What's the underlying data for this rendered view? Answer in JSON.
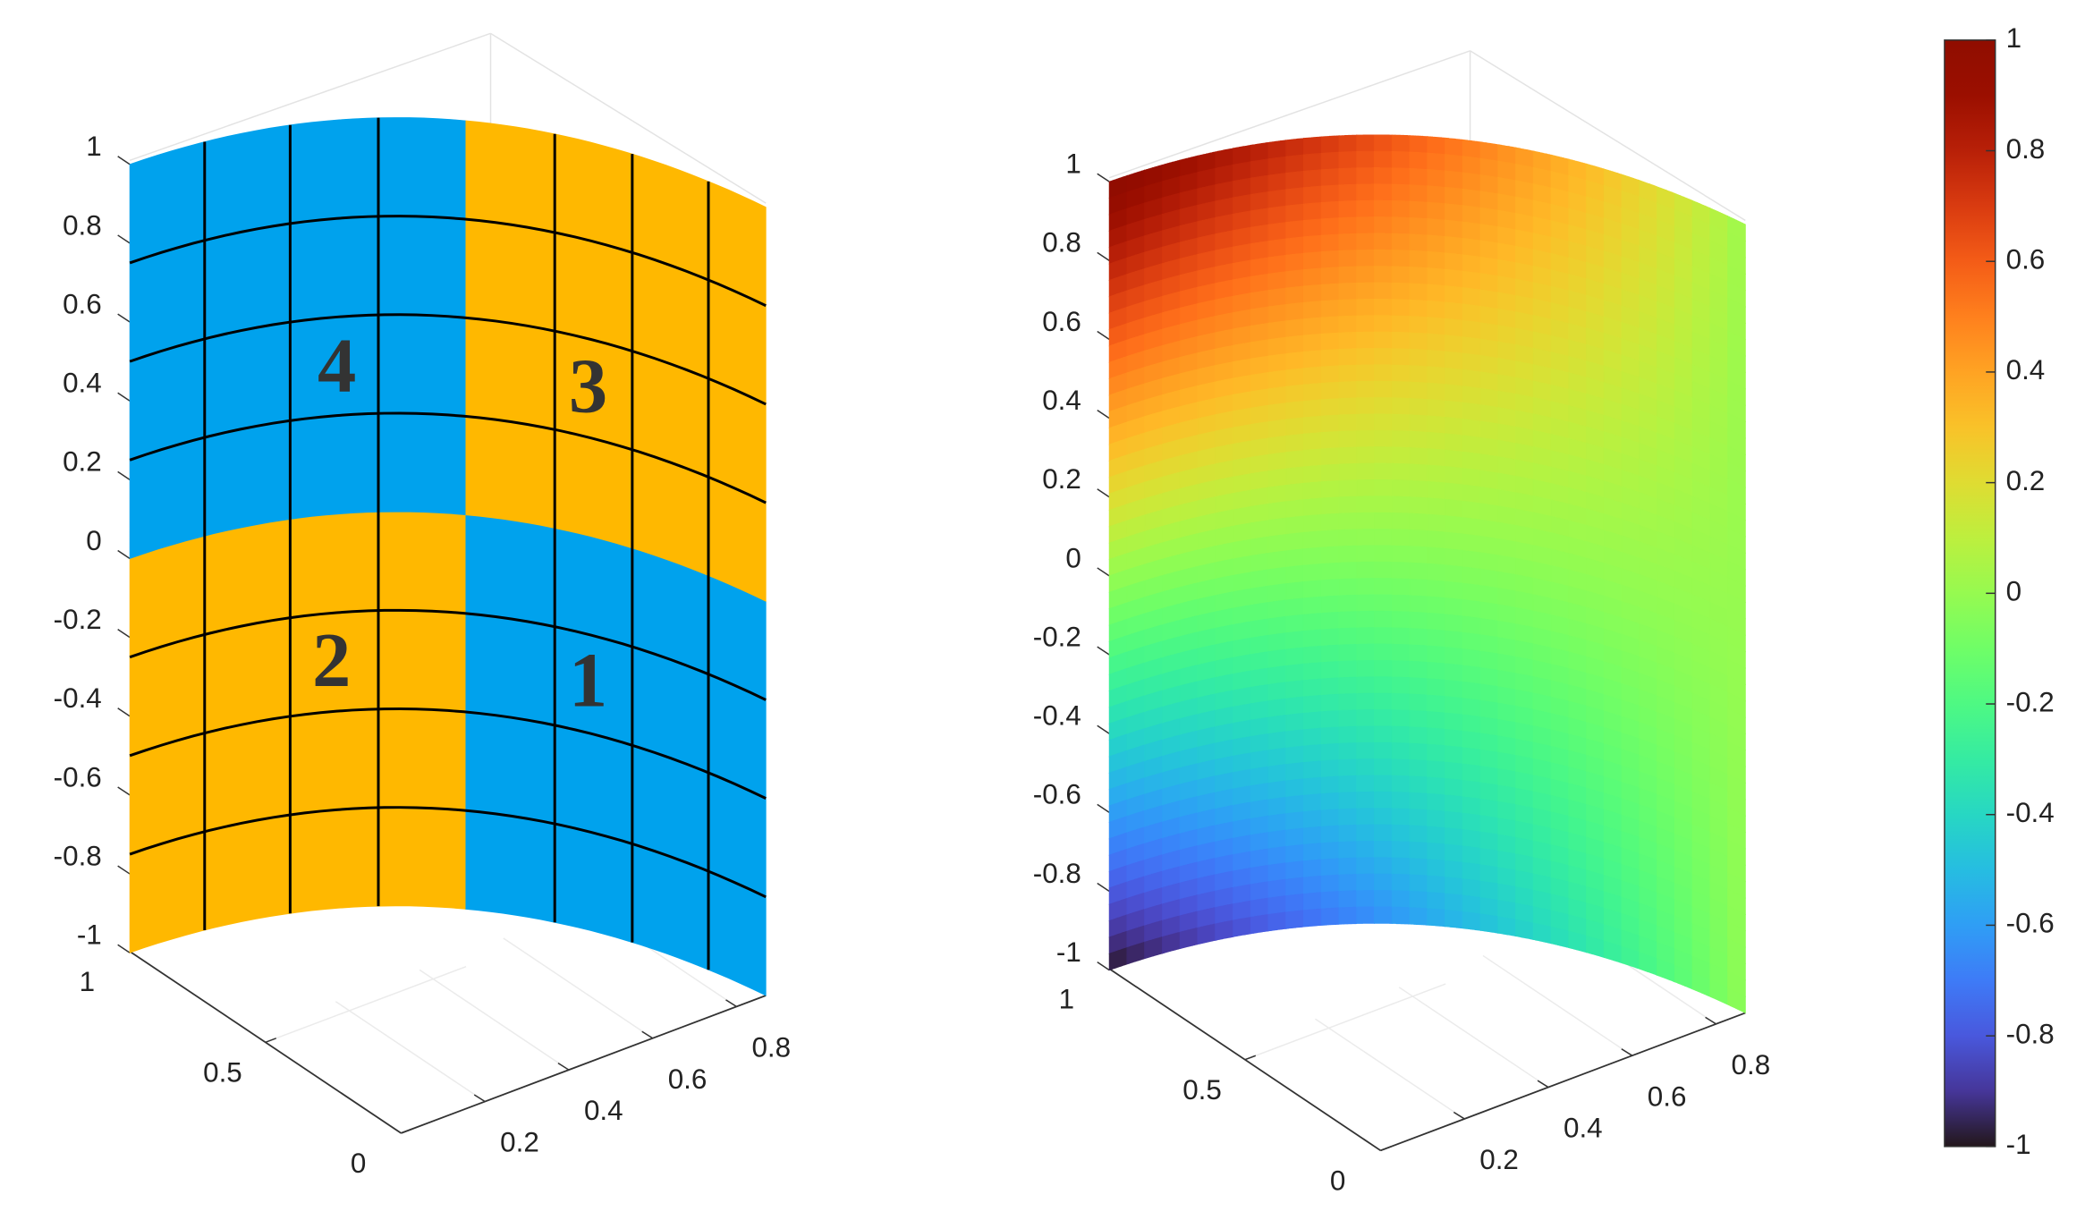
{
  "chart_data": [
    {
      "type": "patch3d",
      "xlim": [
        0,
        0.87
      ],
      "ylim": [
        0,
        1
      ],
      "zlim": [
        -1,
        1
      ],
      "xticks": [
        0.2,
        0.4,
        0.6,
        0.8
      ],
      "yticks": [
        0,
        0.5,
        1
      ],
      "zticks": [
        -1,
        -0.8,
        -0.6,
        -0.4,
        -0.2,
        0,
        0.2,
        0.4,
        0.6,
        0.8,
        1
      ],
      "patches": [
        {
          "label": "1",
          "color": "#00a2ed"
        },
        {
          "label": "2",
          "color": "#ffb800"
        },
        {
          "label": "3",
          "color": "#ffb800"
        },
        {
          "label": "4",
          "color": "#00a2ed"
        }
      ],
      "grid": true
    },
    {
      "type": "surface3d",
      "xlim": [
        0,
        0.87
      ],
      "ylim": [
        0,
        1
      ],
      "zlim": [
        -1,
        1
      ],
      "xticks": [
        0.2,
        0.4,
        0.6,
        0.8
      ],
      "yticks": [
        0,
        0.5,
        1
      ],
      "zticks": [
        -1,
        -0.8,
        -0.6,
        -0.4,
        -0.2,
        0,
        0.2,
        0.4,
        0.6,
        0.8,
        1
      ],
      "colormap": "turbo",
      "clim": [
        -1,
        1
      ],
      "cticks": [
        -1,
        -0.8,
        -0.6,
        -0.4,
        -0.2,
        0,
        0.2,
        0.4,
        0.6,
        0.8,
        1
      ],
      "grid": true
    }
  ]
}
